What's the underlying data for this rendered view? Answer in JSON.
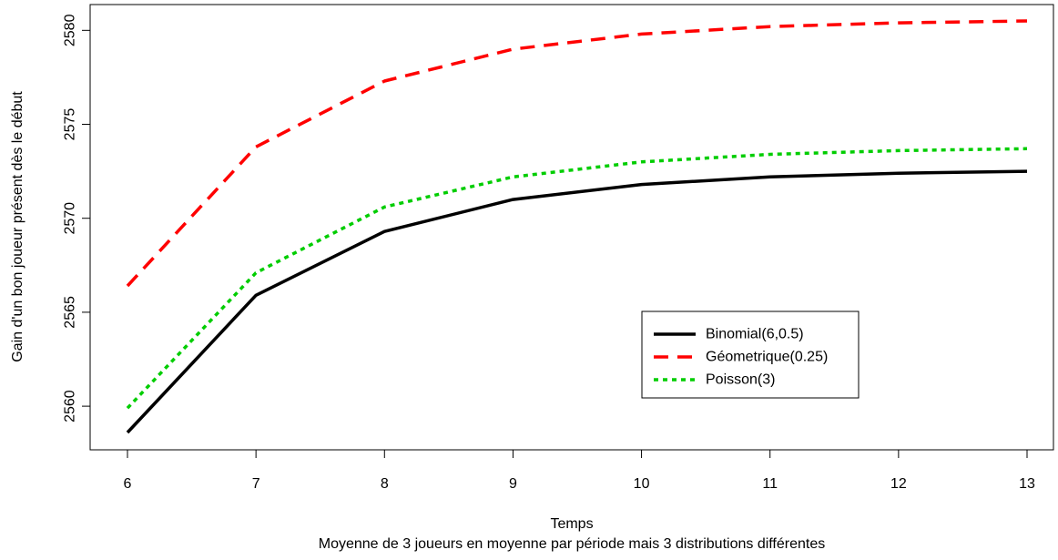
{
  "chart_data": {
    "type": "line",
    "title": "",
    "xlabel": "Temps",
    "subtitle": "Moyenne de 3 joueurs en moyenne par période mais 3 distributions différentes",
    "ylabel": "Gain d'un bon joueur présent dès le début",
    "x": [
      6,
      7,
      8,
      9,
      10,
      11,
      12,
      13
    ],
    "xlim": [
      6,
      13
    ],
    "ylim": [
      2558.6,
      2580.5
    ],
    "xticks": [
      "6",
      "7",
      "8",
      "9",
      "10",
      "11",
      "12",
      "13"
    ],
    "yticks": [
      "2560",
      "2565",
      "2570",
      "2575",
      "2580"
    ],
    "ytick_values": [
      2560,
      2565,
      2570,
      2575,
      2580
    ],
    "grid": false,
    "legend_position": "bottom-right",
    "series": [
      {
        "name": "Binomial(6,0.5)",
        "color": "#000000",
        "dash": "solid",
        "values": [
          2558.6,
          2565.9,
          2569.3,
          2571.0,
          2571.8,
          2572.2,
          2572.4,
          2572.5
        ]
      },
      {
        "name": "Géometrique(0.25)",
        "color": "#ff0000",
        "dash": "dashed",
        "values": [
          2566.4,
          2573.8,
          2577.3,
          2579.0,
          2579.8,
          2580.2,
          2580.4,
          2580.5
        ]
      },
      {
        "name": "Poisson(3)",
        "color": "#00cd00",
        "dash": "dotted",
        "values": [
          2559.9,
          2567.1,
          2570.6,
          2572.2,
          2573.0,
          2573.4,
          2573.6,
          2573.7
        ]
      }
    ]
  }
}
